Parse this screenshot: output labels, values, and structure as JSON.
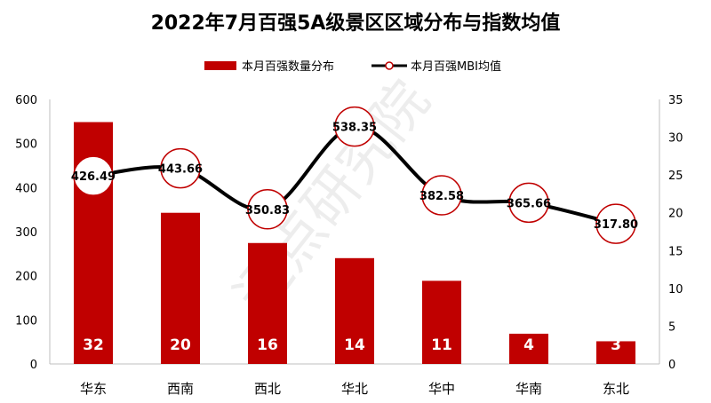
{
  "chart_data": {
    "type": "bar+line",
    "title": "2022年7月百强5A级景区区域分布与指数均值",
    "categories": [
      "华东",
      "西南",
      "西北",
      "华北",
      "华中",
      "华南",
      "东北"
    ],
    "series": [
      {
        "name": "本月百强数量分布",
        "type": "bar",
        "axis": "right",
        "values": [
          32,
          20,
          16,
          14,
          11,
          4,
          3
        ],
        "color": "#C00000"
      },
      {
        "name": "本月百强MBI均值",
        "type": "line",
        "axis": "left",
        "values": [
          426.49,
          443.66,
          350.83,
          538.35,
          382.58,
          365.66,
          317.8
        ],
        "labels": [
          "426.49",
          "443.66",
          "350.83",
          "538.35",
          "382.58",
          "365.66",
          "317.80"
        ],
        "color": "#000000",
        "marker_color": "#C00000"
      }
    ],
    "left_axis": {
      "ylim": [
        0,
        600
      ],
      "ticks": [
        "0",
        "100",
        "200",
        "300",
        "400",
        "500",
        "600"
      ]
    },
    "right_axis": {
      "ylim": [
        0,
        35
      ],
      "ticks": [
        "0",
        "5",
        "10",
        "15",
        "20",
        "25",
        "30",
        "35"
      ]
    },
    "legend_placement": "top",
    "grid": false,
    "watermark": "迈点研究院"
  }
}
